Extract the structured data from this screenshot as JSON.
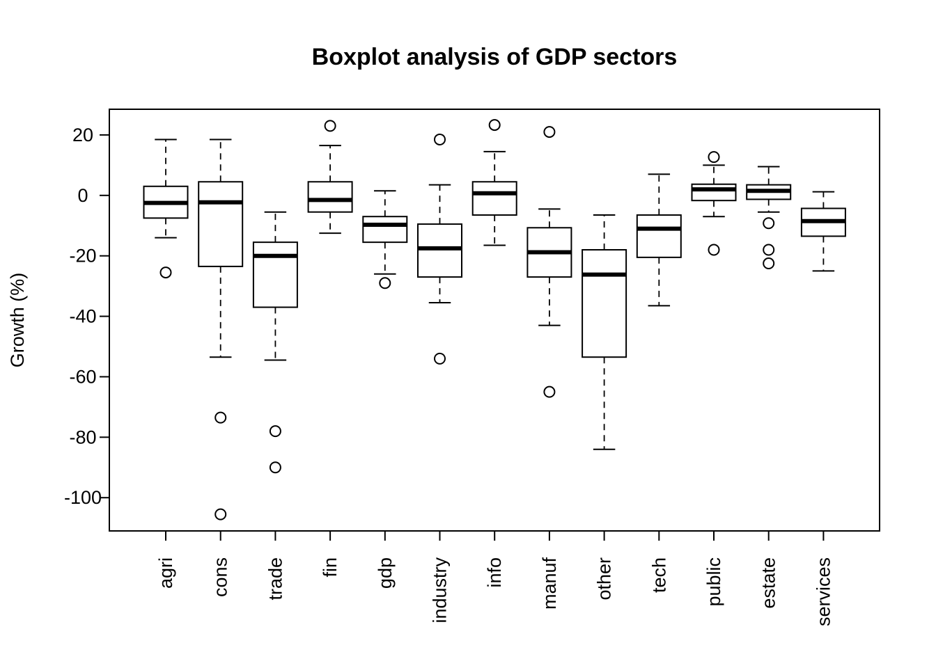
{
  "chart_data": {
    "type": "boxplot",
    "title": "Boxplot analysis of GDP sectors",
    "xlabel": "",
    "ylabel": "Growth (%)",
    "ylim": [
      -111,
      28.5
    ],
    "yticks": [
      20,
      0,
      -20,
      -40,
      -60,
      -80,
      -100
    ],
    "grid": false,
    "legend": "none",
    "colors": {
      "box_fill": "#ffffff",
      "line": "#000000",
      "median": "#000000"
    },
    "categories": [
      "agri",
      "cons",
      "trade",
      "fin",
      "gdp",
      "industry",
      "info",
      "manuf",
      "other",
      "tech",
      "public",
      "estate",
      "services"
    ],
    "boxes": [
      {
        "category": "agri",
        "whisker_low": -14,
        "q1": -7.5,
        "median": -2.5,
        "q3": 3,
        "whisker_high": 18.5,
        "outliers": [
          -25.5
        ]
      },
      {
        "category": "cons",
        "whisker_low": -53.5,
        "q1": -23.5,
        "median": -2.3,
        "q3": 4.5,
        "whisker_high": 18.5,
        "outliers": [
          -73.5,
          -105.5
        ]
      },
      {
        "category": "trade",
        "whisker_low": -54.5,
        "q1": -37,
        "median": -20,
        "q3": -15.5,
        "whisker_high": -5.5,
        "outliers": [
          -78,
          -90
        ]
      },
      {
        "category": "fin",
        "whisker_low": -12.5,
        "q1": -5.5,
        "median": -1.5,
        "q3": 4.5,
        "whisker_high": 16.5,
        "outliers": [
          23
        ]
      },
      {
        "category": "gdp",
        "whisker_low": -26,
        "q1": -15.5,
        "median": -9.7,
        "q3": -7,
        "whisker_high": 1.5,
        "outliers": [
          -29
        ]
      },
      {
        "category": "industry",
        "whisker_low": -35.5,
        "q1": -27,
        "median": -17.5,
        "q3": -9.5,
        "whisker_high": 3.5,
        "outliers": [
          18.5,
          -54
        ]
      },
      {
        "category": "info",
        "whisker_low": -16.5,
        "q1": -6.5,
        "median": 0.7,
        "q3": 4.5,
        "whisker_high": 14.5,
        "outliers": [
          23.3
        ]
      },
      {
        "category": "manuf",
        "whisker_low": -43,
        "q1": -27,
        "median": -18.8,
        "q3": -10.7,
        "whisker_high": -4.5,
        "outliers": [
          21,
          -65
        ]
      },
      {
        "category": "other",
        "whisker_low": -84,
        "q1": -53.5,
        "median": -26.2,
        "q3": -18,
        "whisker_high": -6.5,
        "outliers": []
      },
      {
        "category": "tech",
        "whisker_low": -36.5,
        "q1": -20.5,
        "median": -11,
        "q3": -6.5,
        "whisker_high": 7,
        "outliers": []
      },
      {
        "category": "public",
        "whisker_low": -7,
        "q1": -1.7,
        "median": 2,
        "q3": 3.7,
        "whisker_high": 10,
        "outliers": [
          12.7,
          -18
        ]
      },
      {
        "category": "estate",
        "whisker_low": -5.5,
        "q1": -1.3,
        "median": 1.5,
        "q3": 3.5,
        "whisker_high": 9.5,
        "outliers": [
          -9.2,
          -18,
          -22.5
        ]
      },
      {
        "category": "services",
        "whisker_low": -25,
        "q1": -13.5,
        "median": -8.5,
        "q3": -4.3,
        "whisker_high": 1.2,
        "outliers": []
      }
    ]
  }
}
